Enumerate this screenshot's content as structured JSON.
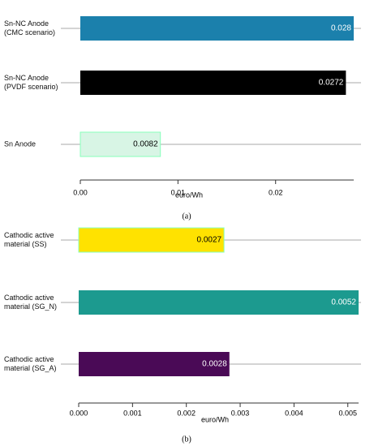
{
  "chart_data": [
    {
      "type": "bar",
      "orientation": "horizontal",
      "categories": [
        "Sn-NC Anode\n(CMC scenario)",
        "Sn-NC Anode\n(PVDF scenario)",
        "Sn Anode"
      ],
      "values": [
        0.028,
        0.0272,
        0.0082
      ],
      "colors": [
        "#1b80ac",
        "#000000",
        "#d8f5e5"
      ],
      "xlim": [
        0,
        0.028
      ],
      "xticks": [
        {
          "value": 0,
          "label": "0.00"
        },
        {
          "value": 0.01,
          "label": "0.01"
        },
        {
          "value": 0.02,
          "label": "0.02"
        }
      ],
      "xlabel": "euro/Wh",
      "caption": "(a)"
    },
    {
      "type": "bar",
      "orientation": "horizontal",
      "categories": [
        "Cathodic active\nmaterial (SS)",
        "Cathodic active\nmaterial (SG_N)",
        "Cathodic active\nmaterial (SG_A)"
      ],
      "values": [
        0.0027,
        0.0052,
        0.0028
      ],
      "colors": [
        "#ffe200",
        "#1c9a8f",
        "#4a0a56"
      ],
      "xlim": [
        0,
        0.0052
      ],
      "xticks": [
        {
          "value": 0,
          "label": "0.000"
        },
        {
          "value": 0.001,
          "label": "0.001"
        },
        {
          "value": 0.002,
          "label": "0.002"
        },
        {
          "value": 0.003,
          "label": "0.003"
        },
        {
          "value": 0.004,
          "label": "0.004"
        },
        {
          "value": 0.005,
          "label": "0.005"
        }
      ],
      "xlabel": "euro/Wh",
      "caption": "(b)"
    }
  ]
}
